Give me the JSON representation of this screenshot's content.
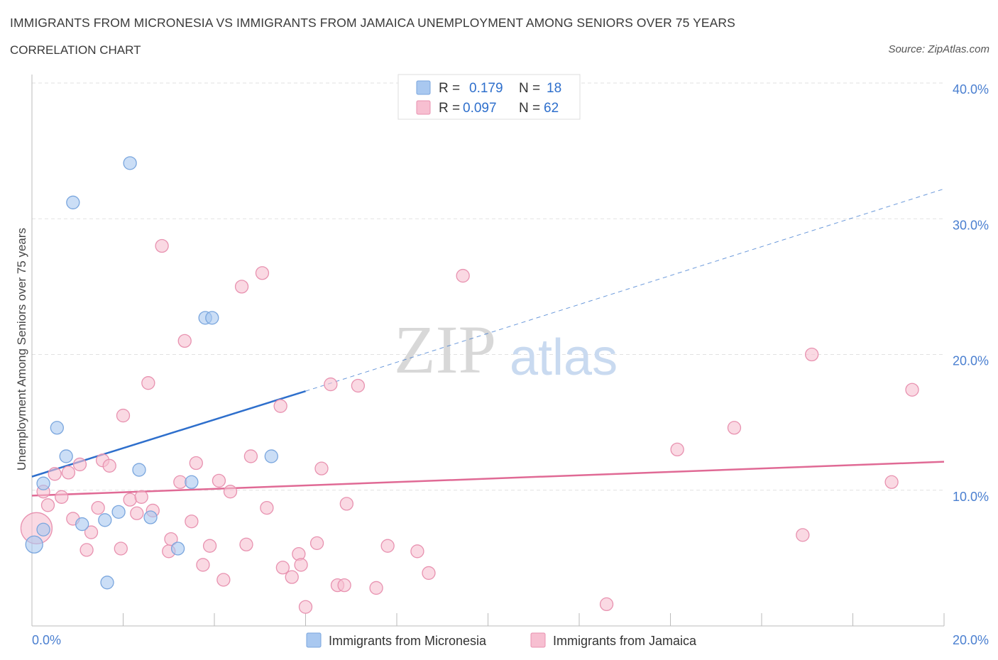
{
  "header": {
    "title": "IMMIGRANTS FROM MICRONESIA VS IMMIGRANTS FROM JAMAICA UNEMPLOYMENT AMONG SENIORS OVER 75 YEARS",
    "subtitle": "CORRELATION CHART",
    "source": "Source: ZipAtlas.com"
  },
  "watermark": {
    "zip": "ZIP",
    "atlas": "atlas"
  },
  "legend": {
    "rows": [
      {
        "r_label": "R =",
        "r_value": "0.179",
        "n_label": "N =",
        "n_value": "18"
      },
      {
        "r_label": "R =",
        "r_value": "0.097",
        "n_label": "N =",
        "n_value": "62"
      }
    ]
  },
  "chart_data": {
    "type": "scatter",
    "title": "IMMIGRANTS FROM MICRONESIA VS IMMIGRANTS FROM JAMAICA UNEMPLOYMENT AMONG SENIORS OVER 75 YEARS",
    "xlabel": "",
    "ylabel": "Unemployment Among Seniors over 75 years",
    "xlim": [
      0,
      20
    ],
    "ylim": [
      0,
      40
    ],
    "x_tick_labels": [
      "0.0%",
      "20.0%"
    ],
    "y_ticks": [
      10,
      20,
      30,
      40
    ],
    "y_tick_labels": [
      "10.0%",
      "20.0%",
      "30.0%",
      "40.0%"
    ],
    "grid": true,
    "legend_position": "top-center",
    "series": [
      {
        "name": "Immigrants from Micronesia",
        "color": "#a9c8f0",
        "stroke": "#7aa6de",
        "line_color": "#2e6fcc",
        "trend": {
          "x": [
            0,
            6
          ],
          "y": [
            11.0,
            17.3
          ],
          "dashed_to_x": 20,
          "dashed_to_y": 32.2
        },
        "points": [
          {
            "x": 0.05,
            "y": 6.0
          },
          {
            "x": 0.25,
            "y": 7.1
          },
          {
            "x": 0.25,
            "y": 10.5
          },
          {
            "x": 0.55,
            "y": 14.6
          },
          {
            "x": 0.75,
            "y": 12.5
          },
          {
            "x": 0.9,
            "y": 31.2
          },
          {
            "x": 1.1,
            "y": 7.5
          },
          {
            "x": 1.6,
            "y": 7.8
          },
          {
            "x": 1.65,
            "y": 3.2
          },
          {
            "x": 1.9,
            "y": 8.4
          },
          {
            "x": 2.15,
            "y": 34.1
          },
          {
            "x": 2.35,
            "y": 11.5
          },
          {
            "x": 2.6,
            "y": 8.0
          },
          {
            "x": 3.2,
            "y": 5.7
          },
          {
            "x": 3.5,
            "y": 10.6
          },
          {
            "x": 3.8,
            "y": 22.7
          },
          {
            "x": 3.95,
            "y": 22.7
          },
          {
            "x": 5.25,
            "y": 12.5
          }
        ]
      },
      {
        "name": "Immigrants from Jamaica",
        "color": "#f7bfd1",
        "stroke": "#e892b0",
        "line_color": "#e06a95",
        "trend": {
          "x": [
            0,
            20
          ],
          "y": [
            9.6,
            12.1
          ]
        },
        "points": [
          {
            "x": 0.1,
            "y": 7.2
          },
          {
            "x": 0.25,
            "y": 9.9
          },
          {
            "x": 0.35,
            "y": 8.9
          },
          {
            "x": 0.5,
            "y": 11.2
          },
          {
            "x": 0.65,
            "y": 9.5
          },
          {
            "x": 0.8,
            "y": 11.3
          },
          {
            "x": 0.9,
            "y": 7.9
          },
          {
            "x": 1.05,
            "y": 11.9
          },
          {
            "x": 1.2,
            "y": 5.6
          },
          {
            "x": 1.3,
            "y": 6.9
          },
          {
            "x": 1.45,
            "y": 8.7
          },
          {
            "x": 1.55,
            "y": 12.2
          },
          {
            "x": 1.7,
            "y": 11.8
          },
          {
            "x": 1.95,
            "y": 5.7
          },
          {
            "x": 2.0,
            "y": 15.5
          },
          {
            "x": 2.15,
            "y": 9.3
          },
          {
            "x": 2.3,
            "y": 8.3
          },
          {
            "x": 2.4,
            "y": 9.5
          },
          {
            "x": 2.55,
            "y": 17.9
          },
          {
            "x": 2.65,
            "y": 8.5
          },
          {
            "x": 2.85,
            "y": 28.0
          },
          {
            "x": 3.0,
            "y": 5.5
          },
          {
            "x": 3.05,
            "y": 6.4
          },
          {
            "x": 3.25,
            "y": 10.6
          },
          {
            "x": 3.35,
            "y": 21.0
          },
          {
            "x": 3.5,
            "y": 7.7
          },
          {
            "x": 3.6,
            "y": 12.0
          },
          {
            "x": 3.75,
            "y": 4.5
          },
          {
            "x": 3.9,
            "y": 5.9
          },
          {
            "x": 4.1,
            "y": 10.7
          },
          {
            "x": 4.2,
            "y": 3.4
          },
          {
            "x": 4.35,
            "y": 9.9
          },
          {
            "x": 4.6,
            "y": 25.0
          },
          {
            "x": 4.7,
            "y": 6.0
          },
          {
            "x": 4.8,
            "y": 12.5
          },
          {
            "x": 5.05,
            "y": 26.0
          },
          {
            "x": 5.15,
            "y": 8.7
          },
          {
            "x": 5.45,
            "y": 16.2
          },
          {
            "x": 5.5,
            "y": 4.3
          },
          {
            "x": 5.7,
            "y": 3.6
          },
          {
            "x": 5.85,
            "y": 5.3
          },
          {
            "x": 5.9,
            "y": 4.5
          },
          {
            "x": 6.0,
            "y": 1.4
          },
          {
            "x": 6.25,
            "y": 6.1
          },
          {
            "x": 6.35,
            "y": 11.6
          },
          {
            "x": 6.55,
            "y": 17.8
          },
          {
            "x": 6.7,
            "y": 3.0
          },
          {
            "x": 6.85,
            "y": 3.0
          },
          {
            "x": 6.9,
            "y": 9.0
          },
          {
            "x": 7.15,
            "y": 17.7
          },
          {
            "x": 7.55,
            "y": 2.8
          },
          {
            "x": 7.8,
            "y": 5.9
          },
          {
            "x": 8.45,
            "y": 5.5
          },
          {
            "x": 8.7,
            "y": 3.9
          },
          {
            "x": 9.45,
            "y": 25.8
          },
          {
            "x": 12.6,
            "y": 1.6
          },
          {
            "x": 14.15,
            "y": 13.0
          },
          {
            "x": 15.4,
            "y": 14.6
          },
          {
            "x": 16.9,
            "y": 6.7
          },
          {
            "x": 17.1,
            "y": 20.0
          },
          {
            "x": 18.85,
            "y": 10.6
          },
          {
            "x": 19.3,
            "y": 17.4
          }
        ]
      }
    ]
  }
}
